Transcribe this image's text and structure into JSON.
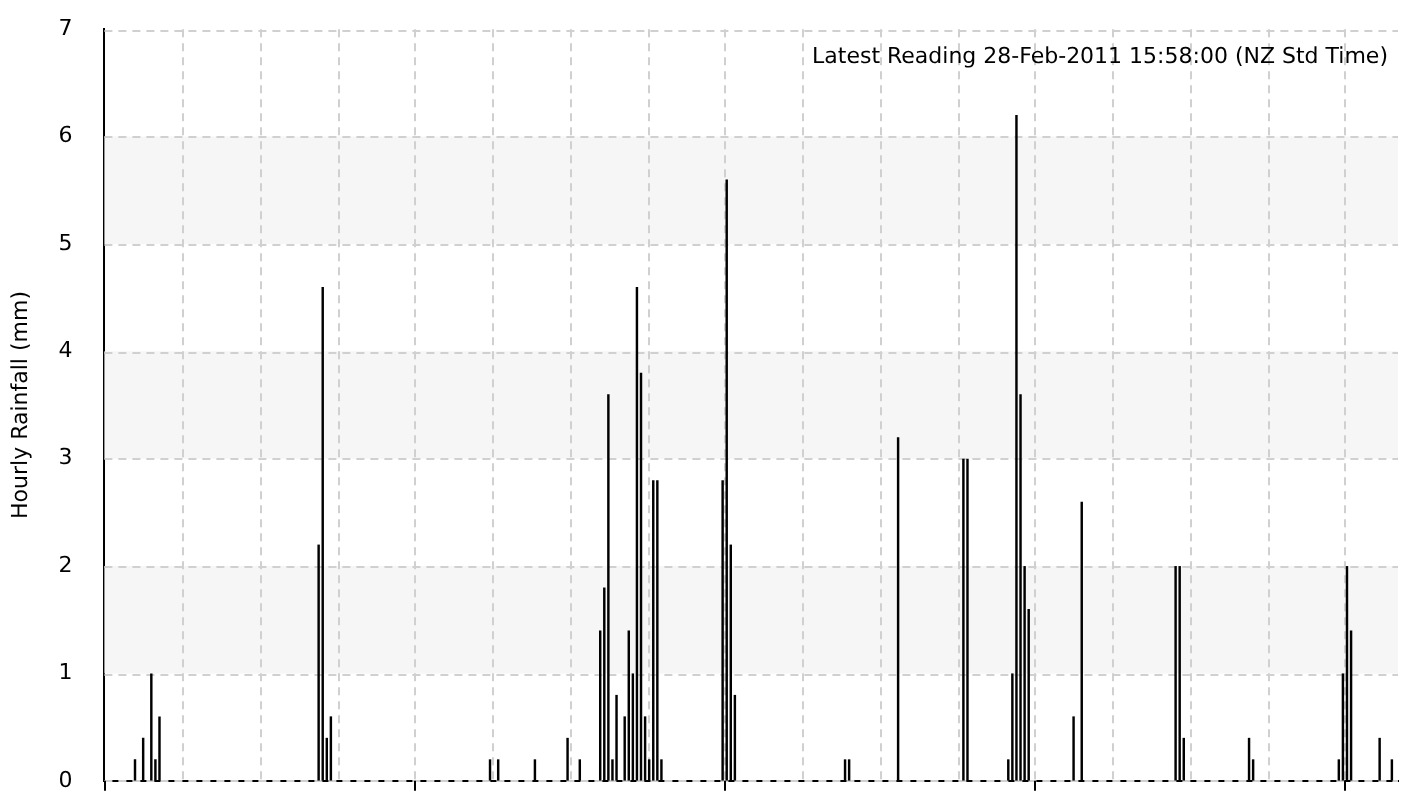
{
  "chart_data": {
    "type": "bar",
    "ylabel": "Hourly Rainfall (mm)",
    "annotations": [
      "Latest Reading 28-Feb-2011 15:58:00 (NZ Std Time)"
    ],
    "categories": [
      null,
      null,
      null,
      null,
      null,
      null,
      null,
      null,
      null,
      null,
      null,
      null,
      null,
      null,
      null,
      null,
      null,
      null,
      null,
      null,
      null,
      null,
      null,
      null,
      null,
      null,
      null,
      null,
      null,
      null,
      null,
      null,
      null,
      null,
      null,
      null,
      null,
      null,
      null,
      null,
      null,
      null,
      null,
      null,
      null,
      null,
      null,
      null,
      null,
      null,
      null,
      null,
      null,
      null,
      null,
      null,
      null,
      null,
      null,
      null,
      null,
      null,
      null,
      null,
      null,
      null,
      null,
      null,
      null,
      null,
      null,
      null,
      null,
      null,
      null,
      null,
      null,
      null,
      null,
      null,
      null,
      null,
      null,
      null,
      null,
      null,
      null,
      null,
      null,
      null,
      null,
      null,
      null,
      null,
      null,
      null,
      null,
      null,
      null,
      null,
      null,
      null,
      null,
      null,
      null,
      null,
      null,
      null,
      null,
      null,
      null,
      null,
      null,
      null,
      null,
      null,
      null,
      null,
      null,
      null,
      null,
      null,
      null,
      null,
      null,
      null,
      null,
      null,
      null,
      null,
      null,
      null,
      null,
      null,
      null,
      null,
      null,
      null,
      null,
      null,
      null,
      null,
      null,
      null,
      null,
      null,
      null,
      null,
      null,
      null,
      null,
      null,
      null,
      null,
      null,
      null,
      null,
      null,
      null,
      null,
      null,
      null,
      null,
      null,
      null,
      null,
      null,
      null,
      null,
      null,
      null,
      null,
      null,
      null,
      null,
      null,
      null,
      null,
      null,
      null,
      null,
      null,
      null,
      null,
      null,
      null,
      null,
      null,
      null,
      null,
      null,
      null,
      null,
      null,
      null,
      null,
      null,
      null,
      null,
      null,
      null,
      null,
      null,
      null,
      null,
      null,
      null,
      null,
      null,
      null,
      null,
      null,
      null,
      null,
      null,
      null,
      null,
      null,
      null,
      null,
      null,
      null,
      null,
      null,
      null,
      null,
      null,
      null,
      null,
      null,
      null,
      null,
      null,
      null,
      null,
      null,
      null,
      null,
      null,
      null,
      null,
      null,
      null,
      null,
      null,
      null,
      null,
      null,
      null,
      null,
      null,
      null,
      null,
      null,
      null,
      null,
      null,
      null,
      null,
      null,
      null,
      null,
      null,
      null,
      null,
      null,
      null,
      null,
      null,
      null,
      null,
      null,
      null,
      null,
      null,
      null,
      null,
      null,
      null,
      null,
      null,
      null,
      null,
      null,
      null,
      null,
      null,
      null,
      null,
      null,
      null,
      null,
      null,
      null,
      null,
      null,
      null,
      null,
      null,
      null,
      null,
      null,
      null,
      null,
      null,
      null,
      null,
      null,
      null,
      null,
      null,
      null,
      null,
      null,
      null,
      null,
      null
    ],
    "values": [
      0,
      0,
      0,
      0,
      0,
      0,
      0,
      0.2,
      0,
      0.4,
      0,
      1.0,
      0.2,
      0.6,
      0,
      0,
      0,
      0,
      0,
      0,
      0,
      0,
      0,
      0,
      0,
      0,
      0,
      0,
      0,
      0,
      0,
      0,
      0,
      0,
      0,
      0,
      0,
      0,
      0,
      0,
      0,
      0,
      0,
      0,
      0,
      0,
      0,
      0,
      0,
      0,
      0,
      0,
      2.2,
      4.6,
      0.4,
      0.6,
      0,
      0,
      0,
      0,
      0,
      0,
      0,
      0,
      0,
      0,
      0,
      0,
      0,
      0,
      0,
      0,
      0,
      0,
      0,
      0,
      0,
      0,
      0,
      0,
      0,
      0,
      0,
      0,
      0,
      0,
      0,
      0,
      0,
      0,
      0,
      0,
      0,
      0,
      0.2,
      0,
      0.2,
      0,
      0,
      0,
      0,
      0,
      0,
      0,
      0,
      0.2,
      0,
      0,
      0,
      0,
      0,
      0,
      0,
      0.4,
      0,
      0,
      0.2,
      0,
      0,
      0,
      0,
      1.4,
      1.8,
      3.6,
      0.2,
      0.8,
      0,
      0.6,
      1.4,
      1.0,
      4.6,
      3.8,
      0.6,
      0.2,
      2.8,
      2.8,
      0.2,
      0,
      0,
      0,
      0,
      0,
      0,
      0,
      0,
      0,
      0,
      0,
      0,
      0,
      0,
      2.8,
      5.6,
      2.2,
      0.8,
      0,
      0,
      0,
      0,
      0,
      0,
      0,
      0,
      0,
      0,
      0,
      0,
      0,
      0,
      0,
      0,
      0,
      0,
      0,
      0,
      0,
      0,
      0,
      0,
      0,
      0,
      0.2,
      0.2,
      0,
      0,
      0,
      0,
      0,
      0,
      0,
      0,
      0,
      0,
      0,
      3.2,
      0,
      0,
      0,
      0,
      0,
      0,
      0,
      0,
      0,
      0,
      0,
      0,
      0,
      0,
      0,
      3.0,
      3.0,
      0,
      0,
      0,
      0,
      0,
      0,
      0,
      0,
      0,
      0.2,
      1.0,
      6.2,
      3.6,
      2.0,
      1.6,
      0,
      0,
      0,
      0,
      0,
      0,
      0,
      0,
      0,
      0,
      0.6,
      0,
      2.6,
      0,
      0,
      0,
      0,
      0,
      0,
      0,
      0,
      0,
      0,
      0,
      0,
      0,
      0,
      0,
      0,
      0,
      0,
      0,
      0,
      0,
      0,
      2.0,
      2.0,
      0.4,
      0,
      0,
      0,
      0,
      0,
      0,
      0,
      0,
      0,
      0,
      0,
      0,
      0,
      0,
      0,
      0.4,
      0.2,
      0,
      0,
      0,
      0,
      0,
      0,
      0,
      0,
      0,
      0,
      0,
      0,
      0,
      0,
      0,
      0,
      0,
      0,
      0,
      0,
      0.2,
      1.0,
      2.0,
      1.4,
      0,
      0,
      0,
      0,
      0,
      0,
      0.4,
      0,
      0,
      0.2,
      0
    ],
    "color": "#000000",
    "ylim": [
      0,
      7
    ],
    "yticks": [
      0,
      1,
      2,
      3,
      4,
      5,
      6,
      7
    ],
    "grid": true,
    "legend": false
  }
}
